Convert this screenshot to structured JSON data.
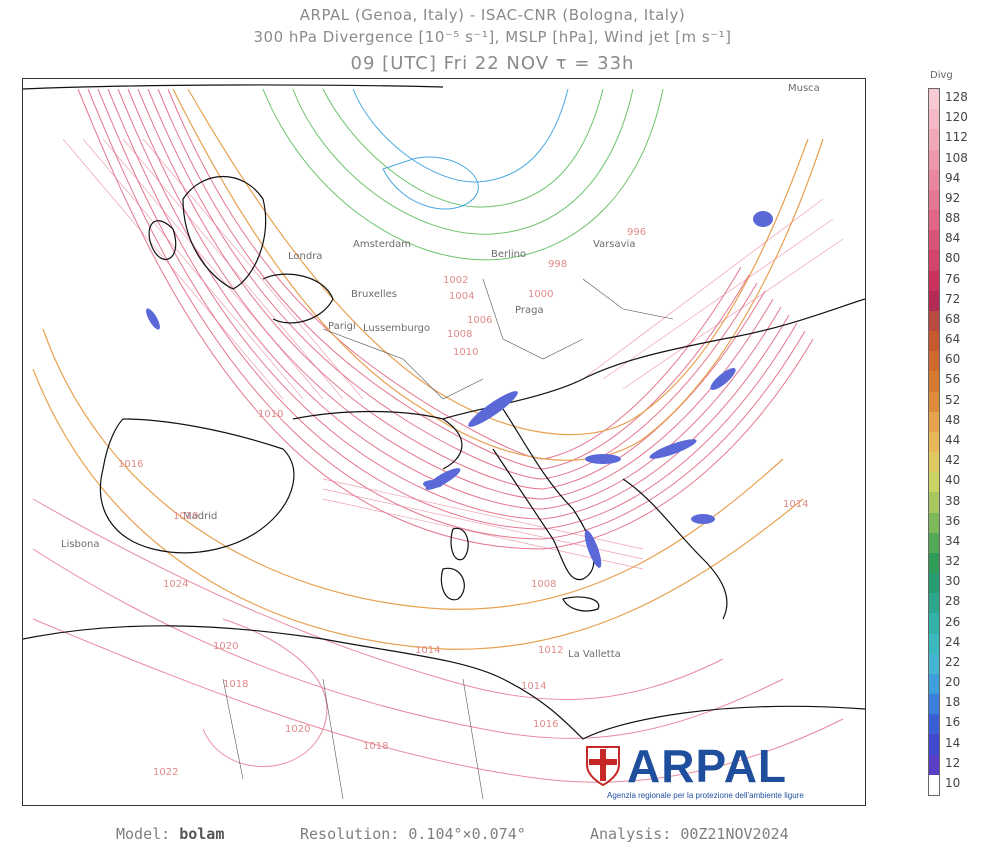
{
  "header": {
    "line1": "ARPAL (Genoa, Italy)  -  ISAC-CNR (Bologna, Italy)",
    "line2": "300 hPa Divergence [10⁻⁵ s⁻¹], MSLP [hPa], Wind jet [m s⁻¹]",
    "line3": "09 [UTC] Fri 22 NOV   τ = 33h"
  },
  "cities": [
    "Musca",
    "Londra",
    "Amsterdam",
    "Berlino",
    "Varsavia",
    "Bruxelles",
    "Parigi",
    "Lussemburgo",
    "Praga",
    "Madrid",
    "Lisbona",
    "La Valletta"
  ],
  "isobars": [
    "1002",
    "1004",
    "1006",
    "1008",
    "1010",
    "996",
    "998",
    "1000",
    "1010",
    "1016",
    "1020",
    "1024",
    "1020",
    "1018",
    "1014",
    "1012",
    "1014",
    "1016",
    "1020",
    "1018",
    "1022",
    "1008",
    "1014"
  ],
  "logo": {
    "name": "ARPAL",
    "subtitle": "Agenzia regionale per la protezione dell'ambiente ligure",
    "colors": [
      "#1f4e9c",
      "#c62828"
    ]
  },
  "legend": {
    "title": "Divg",
    "labels": [
      "128",
      "120",
      "112",
      "108",
      "94",
      "92",
      "88",
      "84",
      "80",
      "76",
      "72",
      "68",
      "64",
      "60",
      "56",
      "52",
      "48",
      "44",
      "42",
      "40",
      "38",
      "36",
      "34",
      "32",
      "30",
      "28",
      "26",
      "24",
      "22",
      "20",
      "18",
      "16",
      "14",
      "12",
      "10"
    ],
    "colors": [
      "#f6c9d3",
      "#f3b9c6",
      "#f0a8b9",
      "#ec97ab",
      "#e8879e",
      "#e57891",
      "#e06684",
      "#da5477",
      "#d3446b",
      "#c8325d",
      "#b32b54",
      "#b94a3f",
      "#c65a2e",
      "#d0692d",
      "#d57a31",
      "#de8c3c",
      "#e6a24d",
      "#e8b75a",
      "#dfca62",
      "#c9d465",
      "#a7c85f",
      "#7fb85a",
      "#54a957",
      "#2f9b57",
      "#279c70",
      "#2ca68c",
      "#32b1a6",
      "#3bb8bd",
      "#44b6d2",
      "#3f9fdc",
      "#3a7fdc",
      "#3a5fd6",
      "#4048d0",
      "#5a3fc6",
      "#ffffff"
    ]
  },
  "footer": {
    "model_label": "Model:",
    "model_value": "bolam",
    "resolution_label": "Resolution:",
    "resolution_value": "0.104°×0.074°",
    "analysis_label": "Analysis:",
    "analysis_value": "00Z21NOV2024"
  }
}
